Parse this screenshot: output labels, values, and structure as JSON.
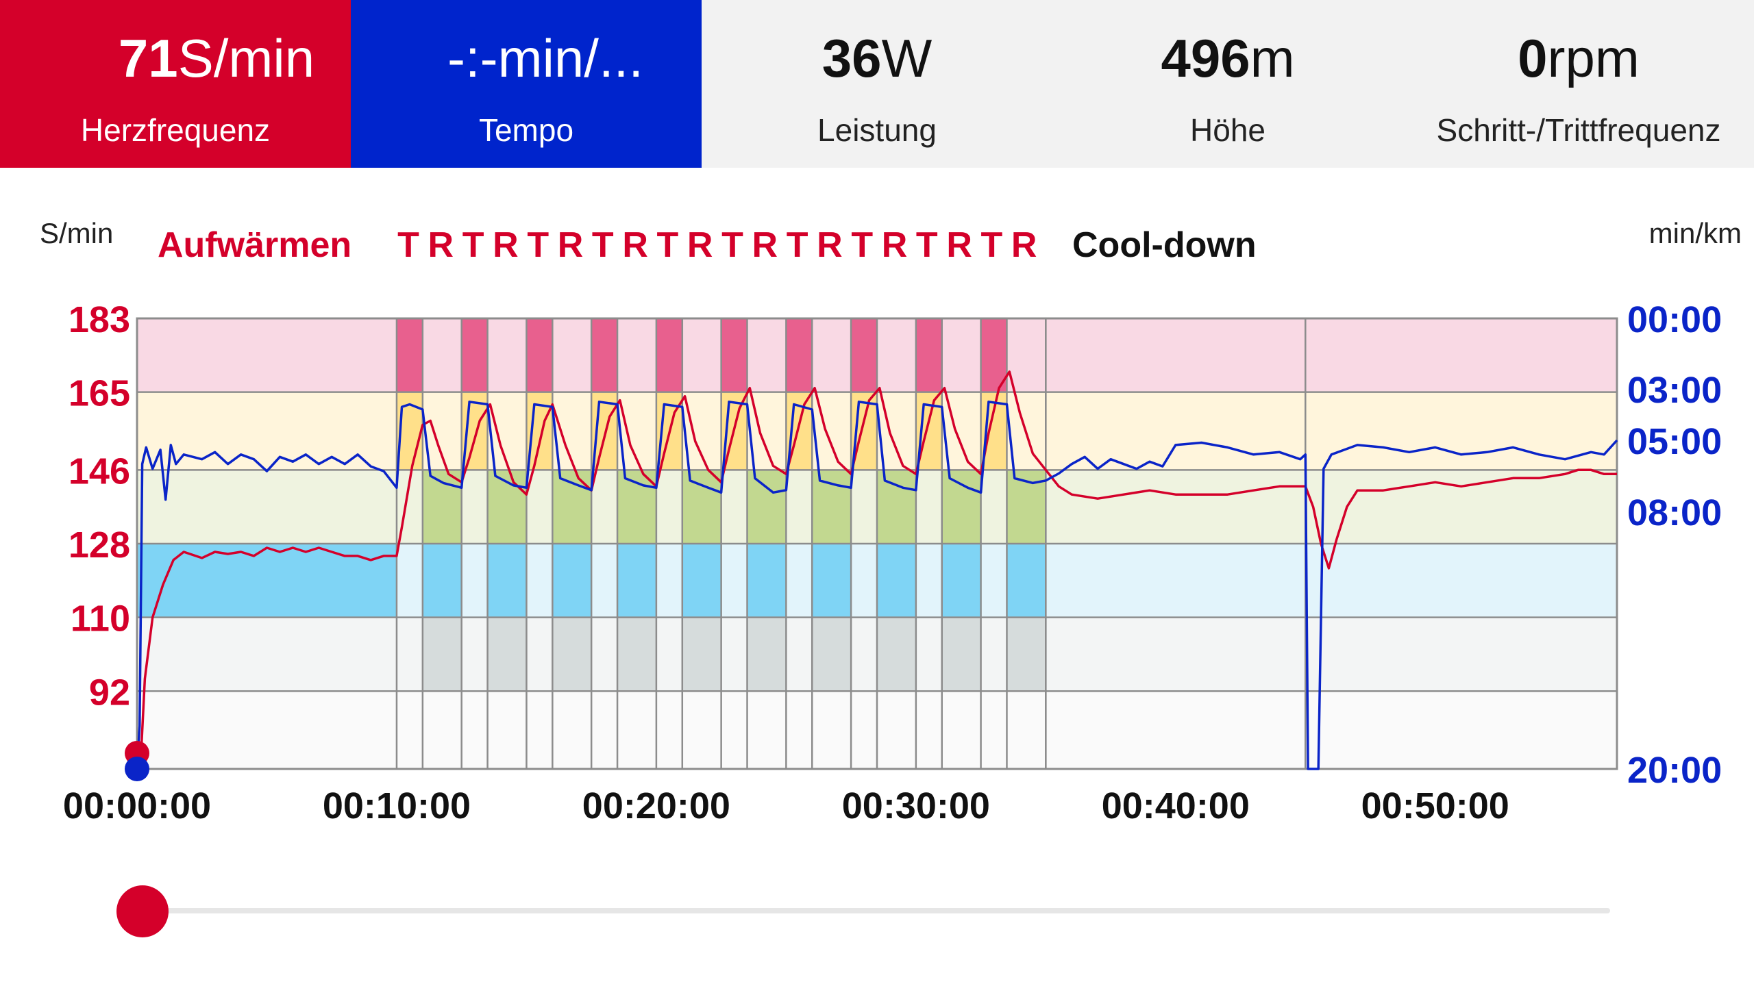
{
  "metrics": {
    "heart_rate": {
      "number": "71",
      "unit": "S/min",
      "label": "Herzfrequenz"
    },
    "pace": {
      "number": "",
      "unit": "-:-min/...",
      "label": "Tempo"
    },
    "power": {
      "number": "36",
      "unit": "W",
      "label": "Leistung"
    },
    "altitude": {
      "number": "496",
      "unit": "m",
      "label": "Höhe"
    },
    "cadence": {
      "number": "0",
      "unit": "rpm",
      "label": "Schritt-/Trittfrequenz"
    }
  },
  "chart_data": {
    "type": "line",
    "left_axis_unit": "S/min",
    "right_axis_unit": "min/km",
    "phases": {
      "warmup": "Aufwärmen",
      "intervals": [
        "T",
        "R",
        "T",
        "R",
        "T",
        "R",
        "T",
        "R",
        "T",
        "R",
        "T",
        "R",
        "T",
        "R",
        "T",
        "R",
        "T",
        "R",
        "T",
        "R"
      ],
      "cooldown": "Cool-down"
    },
    "left_ticks": [
      183,
      165,
      146,
      128,
      110,
      92
    ],
    "right_ticks": [
      "00:00",
      "03:00",
      "05:00",
      "08:00",
      "20:00"
    ],
    "x_ticks": [
      "00:00:00",
      "00:10:00",
      "00:20:00",
      "00:30:00",
      "00:40:00",
      "00:50:00"
    ],
    "x_range_min": [
      0,
      57
    ],
    "hr_range": [
      73,
      183
    ],
    "zone_bounds": [
      183,
      165,
      146,
      128,
      110,
      92
    ],
    "segments_min": {
      "warmup_end": 10,
      "interval_pairs": [
        [
          10.0,
          11.0,
          12.5
        ],
        [
          12.5,
          13.5,
          15.0
        ],
        [
          15.0,
          16.0,
          17.5
        ],
        [
          17.5,
          18.5,
          20.0
        ],
        [
          20.0,
          21.0,
          22.5
        ],
        [
          22.5,
          23.5,
          25.0
        ],
        [
          25.0,
          26.0,
          27.5
        ],
        [
          27.5,
          28.5,
          30.0
        ],
        [
          30.0,
          31.0,
          32.5
        ],
        [
          32.5,
          33.5,
          35.0
        ]
      ],
      "cooldown_start": 35.0,
      "extra_marker": 45.0
    },
    "colors": {
      "hr": "#d4002a",
      "pace": "#0a24c8",
      "zone5": "#f9d9e4",
      "zone4": "#fff5dc",
      "zone3": "#eff3e0",
      "zone2": "#e2f4fb",
      "zone1": "#f3f5f5",
      "zone0": "#fafafa",
      "z5_hot": "#e8608e",
      "z4_hot": "#ffe08a",
      "z3_hot": "#c2d890",
      "z2_hot": "#7fd4f5",
      "z1_hot": "#d6dcdc",
      "grid": "#8c8c8c"
    },
    "series": [
      {
        "values": [
          [
            0,
            73
          ],
          [
            0.15,
            76
          ],
          [
            0.3,
            95
          ],
          [
            0.6,
            110
          ],
          [
            1.0,
            118
          ],
          [
            1.4,
            124
          ],
          [
            1.8,
            126
          ],
          [
            2.5,
            124.5
          ],
          [
            3,
            126
          ],
          [
            3.5,
            125.5
          ],
          [
            4,
            126
          ],
          [
            4.5,
            125
          ],
          [
            5,
            127
          ],
          [
            5.5,
            126
          ],
          [
            6,
            127
          ],
          [
            6.5,
            126
          ],
          [
            7,
            127
          ],
          [
            7.5,
            126
          ],
          [
            8,
            125
          ],
          [
            8.5,
            125
          ],
          [
            9,
            124
          ],
          [
            9.5,
            125
          ],
          [
            10,
            125
          ],
          [
            10.2,
            132
          ],
          [
            10.6,
            147
          ],
          [
            11.0,
            157
          ],
          [
            11.3,
            158
          ],
          [
            11.6,
            152
          ],
          [
            12.0,
            145
          ],
          [
            12.5,
            143
          ],
          [
            12.8,
            149
          ],
          [
            13.2,
            158
          ],
          [
            13.6,
            162
          ],
          [
            14.0,
            152
          ],
          [
            14.5,
            143
          ],
          [
            15.0,
            140
          ],
          [
            15.3,
            147
          ],
          [
            15.7,
            158
          ],
          [
            16.0,
            162
          ],
          [
            16.5,
            152
          ],
          [
            17.0,
            144
          ],
          [
            17.5,
            141
          ],
          [
            17.8,
            149
          ],
          [
            18.2,
            159
          ],
          [
            18.6,
            163
          ],
          [
            19.0,
            152
          ],
          [
            19.5,
            145
          ],
          [
            20.0,
            142
          ],
          [
            20.3,
            150
          ],
          [
            20.7,
            160
          ],
          [
            21.1,
            164
          ],
          [
            21.5,
            153
          ],
          [
            22.0,
            146
          ],
          [
            22.5,
            143
          ],
          [
            22.8,
            151
          ],
          [
            23.2,
            161
          ],
          [
            23.6,
            166
          ],
          [
            24.0,
            155
          ],
          [
            24.5,
            147
          ],
          [
            25.0,
            145
          ],
          [
            25.3,
            152
          ],
          [
            25.7,
            162
          ],
          [
            26.1,
            166
          ],
          [
            26.5,
            156
          ],
          [
            27.0,
            148
          ],
          [
            27.5,
            145
          ],
          [
            27.8,
            153
          ],
          [
            28.2,
            163
          ],
          [
            28.6,
            166
          ],
          [
            29.0,
            155
          ],
          [
            29.5,
            147
          ],
          [
            30.0,
            145
          ],
          [
            30.3,
            153
          ],
          [
            30.7,
            163
          ],
          [
            31.1,
            166
          ],
          [
            31.5,
            156
          ],
          [
            32.0,
            148
          ],
          [
            32.5,
            145
          ],
          [
            32.8,
            155
          ],
          [
            33.2,
            166
          ],
          [
            33.6,
            170
          ],
          [
            34.0,
            160
          ],
          [
            34.5,
            150
          ],
          [
            35.0,
            146
          ],
          [
            35.5,
            142
          ],
          [
            36,
            140
          ],
          [
            37,
            139
          ],
          [
            38,
            140
          ],
          [
            39,
            141
          ],
          [
            40,
            140
          ],
          [
            41,
            140
          ],
          [
            42,
            140
          ],
          [
            43,
            141
          ],
          [
            44,
            142
          ],
          [
            45,
            142
          ],
          [
            45.3,
            137
          ],
          [
            45.6,
            128
          ],
          [
            45.9,
            122
          ],
          [
            46.2,
            129
          ],
          [
            46.6,
            137
          ],
          [
            47,
            141
          ],
          [
            48,
            141
          ],
          [
            49,
            142
          ],
          [
            50,
            143
          ],
          [
            51,
            142
          ],
          [
            52,
            143
          ],
          [
            53,
            144
          ],
          [
            54,
            144
          ],
          [
            55,
            145
          ],
          [
            55.5,
            146
          ],
          [
            56,
            146
          ],
          [
            56.5,
            145
          ],
          [
            57,
            145
          ]
        ]
      },
      {
        "values": [
          [
            0,
            20.0
          ],
          [
            0.1,
            18.0
          ],
          [
            0.2,
            6.0
          ],
          [
            0.35,
            5.3
          ],
          [
            0.6,
            6.2
          ],
          [
            0.9,
            5.4
          ],
          [
            1.1,
            7.5
          ],
          [
            1.3,
            5.2
          ],
          [
            1.5,
            6.0
          ],
          [
            1.8,
            5.6
          ],
          [
            2.5,
            5.8
          ],
          [
            3,
            5.5
          ],
          [
            3.5,
            6.0
          ],
          [
            4,
            5.6
          ],
          [
            4.5,
            5.8
          ],
          [
            5,
            6.3
          ],
          [
            5.5,
            5.7
          ],
          [
            6,
            5.9
          ],
          [
            6.5,
            5.6
          ],
          [
            7,
            6.0
          ],
          [
            7.5,
            5.7
          ],
          [
            8,
            6.0
          ],
          [
            8.5,
            5.6
          ],
          [
            9,
            6.1
          ],
          [
            9.5,
            6.3
          ],
          [
            10,
            7.0
          ],
          [
            10.2,
            3.7
          ],
          [
            10.5,
            3.6
          ],
          [
            11.0,
            3.8
          ],
          [
            11.3,
            6.5
          ],
          [
            11.8,
            6.8
          ],
          [
            12.5,
            7.0
          ],
          [
            12.8,
            3.5
          ],
          [
            13.5,
            3.6
          ],
          [
            13.8,
            6.5
          ],
          [
            14.5,
            6.9
          ],
          [
            15.0,
            7.0
          ],
          [
            15.3,
            3.6
          ],
          [
            16.0,
            3.7
          ],
          [
            16.3,
            6.6
          ],
          [
            17.0,
            6.9
          ],
          [
            17.5,
            7.1
          ],
          [
            17.8,
            3.5
          ],
          [
            18.5,
            3.6
          ],
          [
            18.8,
            6.6
          ],
          [
            19.5,
            6.9
          ],
          [
            20.0,
            7.0
          ],
          [
            20.3,
            3.6
          ],
          [
            21.0,
            3.7
          ],
          [
            21.3,
            6.7
          ],
          [
            22.0,
            7.0
          ],
          [
            22.5,
            7.2
          ],
          [
            22.8,
            3.5
          ],
          [
            23.5,
            3.6
          ],
          [
            23.8,
            6.6
          ],
          [
            24.5,
            7.2
          ],
          [
            25.0,
            7.1
          ],
          [
            25.3,
            3.6
          ],
          [
            26.0,
            3.8
          ],
          [
            26.3,
            6.7
          ],
          [
            27.0,
            6.9
          ],
          [
            27.5,
            7.0
          ],
          [
            27.8,
            3.5
          ],
          [
            28.5,
            3.6
          ],
          [
            28.8,
            6.7
          ],
          [
            29.5,
            7.0
          ],
          [
            30.0,
            7.1
          ],
          [
            30.3,
            3.6
          ],
          [
            31.0,
            3.7
          ],
          [
            31.3,
            6.6
          ],
          [
            32.0,
            7.0
          ],
          [
            32.5,
            7.2
          ],
          [
            32.8,
            3.5
          ],
          [
            33.5,
            3.6
          ],
          [
            33.8,
            6.6
          ],
          [
            34.5,
            6.8
          ],
          [
            35.0,
            6.7
          ],
          [
            35.5,
            6.4
          ],
          [
            36,
            6.0
          ],
          [
            36.5,
            5.7
          ],
          [
            37,
            6.2
          ],
          [
            37.5,
            5.8
          ],
          [
            38,
            6.0
          ],
          [
            38.5,
            6.2
          ],
          [
            39,
            5.9
          ],
          [
            39.5,
            6.1
          ],
          [
            40,
            5.2
          ],
          [
            41,
            5.1
          ],
          [
            42,
            5.3
          ],
          [
            43,
            5.6
          ],
          [
            44,
            5.5
          ],
          [
            44.8,
            5.8
          ],
          [
            45.0,
            5.6
          ],
          [
            45.1,
            20.0
          ],
          [
            45.4,
            20.0
          ],
          [
            45.5,
            20.0
          ],
          [
            45.7,
            6.2
          ],
          [
            46,
            5.6
          ],
          [
            46.5,
            5.4
          ],
          [
            47,
            5.2
          ],
          [
            48,
            5.3
          ],
          [
            49,
            5.5
          ],
          [
            50,
            5.3
          ],
          [
            51,
            5.6
          ],
          [
            52,
            5.5
          ],
          [
            53,
            5.3
          ],
          [
            54,
            5.6
          ],
          [
            55,
            5.8
          ],
          [
            56,
            5.5
          ],
          [
            56.5,
            5.6
          ],
          [
            57,
            5.0
          ]
        ]
      }
    ]
  }
}
